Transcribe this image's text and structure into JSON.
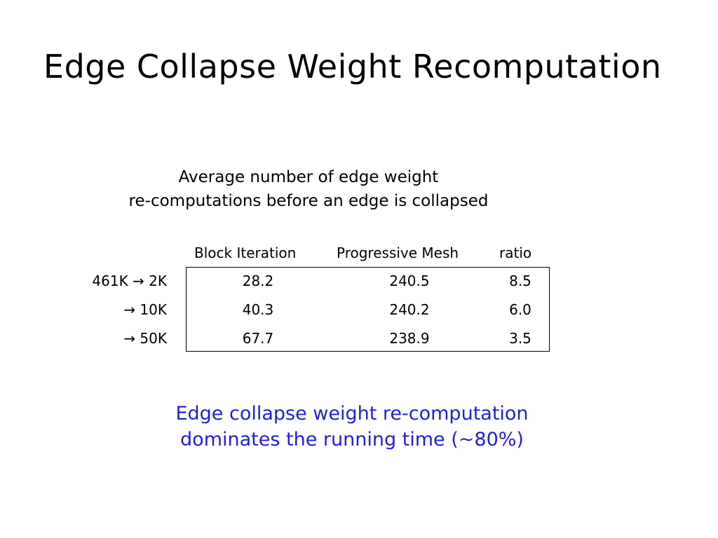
{
  "slide": {
    "title": "Edge Collapse Weight Recomputation",
    "caption": [
      "Average number of edge weight",
      "re-computations before an edge is collapsed"
    ],
    "note": [
      "Edge collapse weight re-computation",
      "dominates the running time (~80%)"
    ],
    "note_color": "#1f1fd6"
  },
  "table": {
    "columns": [
      "Block Iteration",
      "Progressive Mesh",
      "ratio"
    ],
    "rows": [
      {
        "label": "461K → 2K",
        "block": "28.2",
        "prog": "240.5",
        "ratio": "8.5"
      },
      {
        "label": "→ 10K",
        "block": "40.3",
        "prog": "240.2",
        "ratio": "6.0"
      },
      {
        "label": "→ 50K",
        "block": "67.7",
        "prog": "238.9",
        "ratio": "3.5"
      }
    ]
  }
}
